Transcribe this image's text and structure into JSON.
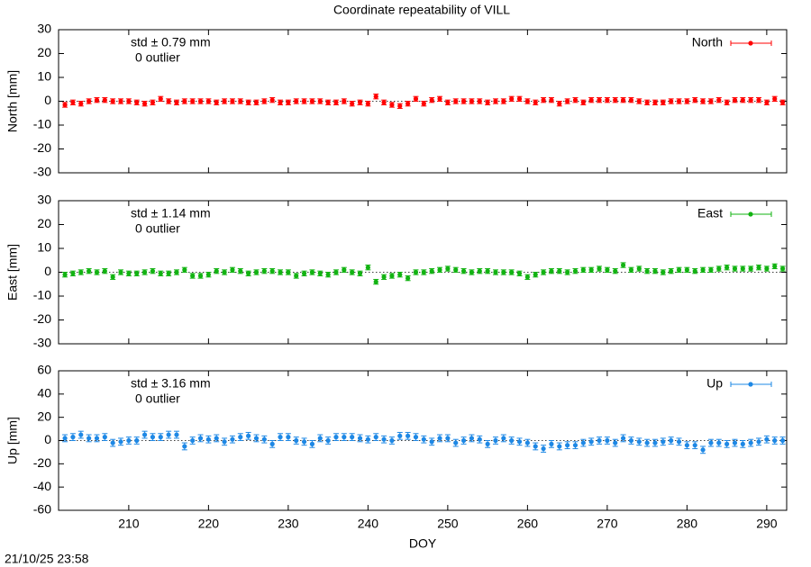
{
  "title": "Coordinate repeatability of VILL",
  "timestamp": "21/10/25 23:58",
  "chart_data": {
    "type": "scatter",
    "xlabel": "DOY",
    "xlim": [
      201.2,
      292.5
    ],
    "xticks": [
      210,
      220,
      230,
      240,
      250,
      260,
      270,
      280,
      290
    ],
    "x": [
      202,
      203,
      204,
      205,
      206,
      207,
      208,
      209,
      210,
      211,
      212,
      213,
      214,
      215,
      216,
      217,
      218,
      219,
      220,
      221,
      222,
      223,
      224,
      225,
      226,
      227,
      228,
      229,
      230,
      231,
      232,
      233,
      234,
      235,
      236,
      237,
      238,
      239,
      240,
      241,
      242,
      243,
      244,
      245,
      246,
      247,
      248,
      249,
      250,
      251,
      252,
      253,
      254,
      255,
      256,
      257,
      258,
      259,
      260,
      261,
      262,
      263,
      264,
      265,
      266,
      267,
      268,
      269,
      270,
      271,
      272,
      273,
      274,
      275,
      276,
      277,
      278,
      279,
      280,
      281,
      282,
      283,
      284,
      285,
      286,
      287,
      288,
      289,
      290,
      291,
      292
    ],
    "panels": [
      {
        "ylabel": "North [mm]",
        "std_label": "std ± 0.79 mm",
        "outlier_label": "0 outlier",
        "ylim": [
          -30,
          30
        ],
        "yticks": [
          -30,
          -20,
          -10,
          0,
          10,
          20,
          30
        ],
        "series": [
          {
            "name": "North",
            "color": "#ff0000",
            "error": 1,
            "values": [
              -1.5,
              -0.5,
              -1,
              0,
              0.5,
              0.5,
              0,
              0,
              0,
              -0.5,
              -1,
              -0.5,
              1,
              0,
              -0.5,
              0,
              0,
              0,
              0,
              -0.5,
              0,
              0,
              0,
              -0.5,
              -0.5,
              0,
              0.5,
              -0.5,
              -0.5,
              0,
              0,
              0,
              0,
              -0.5,
              -0.5,
              0,
              -1,
              -0.5,
              -1,
              2,
              -0.5,
              -1.5,
              -2,
              -1,
              1,
              -1,
              0.5,
              1,
              -0.5,
              0,
              0,
              0,
              0,
              -0.5,
              0,
              0,
              1,
              1,
              0,
              -0.5,
              0.5,
              0.5,
              -1,
              0,
              0.5,
              -0.5,
              0.5,
              0.5,
              0.5,
              0.5,
              0.5,
              0.5,
              0,
              -0.5,
              -0.5,
              -0.5,
              0,
              0,
              0,
              0.5,
              0,
              0,
              0.5,
              -0.5,
              0.5,
              0.5,
              0.5,
              0.5,
              -0.5,
              1,
              -0.5
            ]
          }
        ]
      },
      {
        "ylabel": "East [mm]",
        "std_label": "std ± 1.14 mm",
        "outlier_label": "0 outlier",
        "ylim": [
          -30,
          30
        ],
        "yticks": [
          -30,
          -20,
          -10,
          0,
          10,
          20,
          30
        ],
        "series": [
          {
            "name": "East",
            "color": "#12b312",
            "error": 1,
            "values": [
              -1,
              -0.5,
              0,
              0.5,
              0,
              0.5,
              -2,
              0,
              -0.5,
              -0.5,
              0,
              0.5,
              -0.5,
              -0.5,
              0,
              1,
              -1.5,
              -1.5,
              -1,
              0.5,
              0,
              1,
              0.5,
              -0.5,
              0,
              0.5,
              0.5,
              0,
              0,
              -1.5,
              -0.5,
              0,
              -0.5,
              -1,
              0,
              1,
              0,
              -0.5,
              2,
              -4,
              -2,
              -1.5,
              -1,
              -2.5,
              0,
              0,
              0.5,
              1,
              1.5,
              1,
              0.5,
              0,
              0.5,
              0.5,
              0,
              0,
              0,
              -0.5,
              -2,
              -1,
              0,
              0.5,
              0.5,
              0,
              0.5,
              1,
              1,
              1.5,
              1,
              0.5,
              3,
              1,
              1.5,
              0.5,
              0.5,
              0,
              0.5,
              1,
              1,
              0.5,
              1,
              1,
              1.5,
              2,
              1.5,
              1.5,
              1.5,
              2,
              1.5,
              2.5,
              1.5
            ]
          }
        ]
      },
      {
        "ylabel": "Up [mm]",
        "std_label": "std ± 3.16 mm",
        "outlier_label": "0 outlier",
        "ylim": [
          -60,
          60
        ],
        "yticks": [
          -60,
          -40,
          -20,
          0,
          20,
          40,
          60
        ],
        "series": [
          {
            "name": "Up",
            "color": "#1e88e5",
            "error": 3,
            "values": [
              2,
              3,
              5,
              2,
              2,
              3,
              -2,
              -1,
              0,
              0,
              5,
              3,
              3,
              5,
              5,
              -5,
              0,
              2,
              1,
              2,
              -1,
              1,
              3,
              4,
              2,
              1,
              -3,
              3,
              3,
              0,
              -1,
              -3,
              2,
              0,
              3,
              3,
              3,
              2,
              1,
              3,
              1,
              0,
              4,
              4,
              3,
              1,
              -1,
              2,
              2,
              -2,
              0,
              2,
              1,
              -3,
              0,
              2,
              0,
              -1,
              -2,
              -5,
              -7,
              -3,
              -5,
              -4,
              -4,
              -2,
              -1,
              0,
              0,
              -2,
              2,
              0,
              -1,
              -2,
              -2,
              -1,
              0,
              -1,
              -4,
              -4,
              -8,
              -2,
              -2,
              -3,
              -2,
              -3,
              -2,
              -1,
              1,
              0,
              0
            ]
          }
        ]
      }
    ]
  }
}
